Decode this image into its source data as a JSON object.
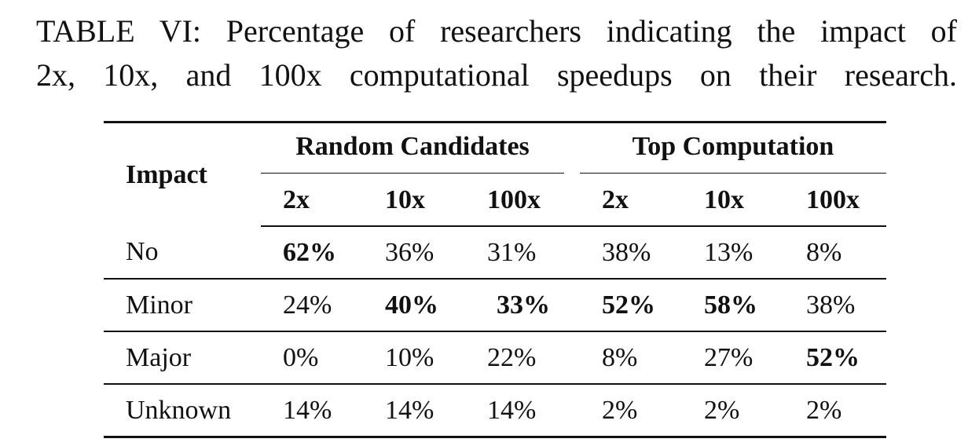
{
  "caption": {
    "line1": "TABLE VI: Percentage of researchers indicating the impact of",
    "line2": "2x, 10x, and 100x computational speedups on their research."
  },
  "table": {
    "row_header": "Impact",
    "groups": [
      {
        "label": "Random Candidates",
        "columns": [
          "2x",
          "10x",
          "100x"
        ]
      },
      {
        "label": "Top Computation",
        "columns": [
          "2x",
          "10x",
          "100x"
        ]
      }
    ],
    "rows": [
      {
        "label": "No",
        "cells": [
          "62%",
          "36%",
          "31%",
          "38%",
          "13%",
          "8%"
        ],
        "bold": [
          true,
          false,
          false,
          false,
          false,
          false
        ]
      },
      {
        "label": "Minor",
        "cells": [
          "24%",
          "40%",
          "33%",
          "52%",
          "58%",
          "38%"
        ],
        "bold": [
          false,
          true,
          true,
          true,
          true,
          false
        ]
      },
      {
        "label": "Major",
        "cells": [
          "0%",
          "10%",
          "22%",
          "8%",
          "27%",
          "52%"
        ],
        "bold": [
          false,
          false,
          false,
          false,
          false,
          true
        ]
      },
      {
        "label": "Unknown",
        "cells": [
          "14%",
          "14%",
          "14%",
          "2%",
          "2%",
          "2%"
        ],
        "bold": [
          false,
          false,
          false,
          false,
          false,
          false
        ]
      }
    ]
  }
}
